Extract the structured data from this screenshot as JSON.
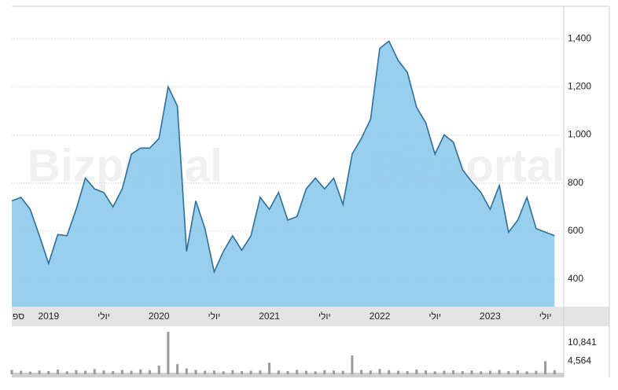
{
  "chart_data": [
    {
      "type": "area",
      "watermark": "Bizportal",
      "color": "#2b6f9c",
      "fill": "#8fc9eb",
      "x": [
        "2018-09",
        "2018-10",
        "2018-11",
        "2018-12",
        "2019-01",
        "2019-02",
        "2019-03",
        "2019-04",
        "2019-05",
        "2019-06",
        "2019-07",
        "2019-08",
        "2019-09",
        "2019-10",
        "2019-11",
        "2019-12",
        "2020-01",
        "2020-02",
        "2020-03",
        "2020-04",
        "2020-05",
        "2020-06",
        "2020-07",
        "2020-08",
        "2020-09",
        "2020-10",
        "2020-11",
        "2020-12",
        "2021-01",
        "2021-02",
        "2021-03",
        "2021-04",
        "2021-05",
        "2021-06",
        "2021-07",
        "2021-08",
        "2021-09",
        "2021-10",
        "2021-11",
        "2021-12",
        "2022-01",
        "2022-02",
        "2022-03",
        "2022-04",
        "2022-05",
        "2022-06",
        "2022-07",
        "2022-08",
        "2022-09",
        "2022-10",
        "2022-11",
        "2022-12",
        "2023-01",
        "2023-02",
        "2023-03",
        "2023-04",
        "2023-05",
        "2023-06",
        "2023-07",
        "2023-08"
      ],
      "values": [
        725,
        740,
        690,
        580,
        465,
        585,
        580,
        690,
        820,
        775,
        760,
        700,
        775,
        920,
        945,
        945,
        985,
        1200,
        1120,
        515,
        725,
        610,
        430,
        515,
        580,
        520,
        580,
        740,
        690,
        760,
        645,
        660,
        775,
        820,
        775,
        820,
        710,
        920,
        985,
        1065,
        1360,
        1390,
        1310,
        1260,
        1115,
        1050,
        920,
        1000,
        970,
        855,
        805,
        760,
        690,
        790,
        595,
        645,
        740,
        610,
        595,
        580
      ],
      "xlim": [
        "2018-09",
        "2023-09"
      ],
      "xticks": [
        {
          "value": "2018-09",
          "label": "ספ"
        },
        {
          "value": "2019-01",
          "label": "2019"
        },
        {
          "value": "2019-07",
          "label": "יולי"
        },
        {
          "value": "2020-01",
          "label": "2020"
        },
        {
          "value": "2020-07",
          "label": "יולי"
        },
        {
          "value": "2021-01",
          "label": "2021"
        },
        {
          "value": "2021-07",
          "label": "יולי"
        },
        {
          "value": "2022-01",
          "label": "2022"
        },
        {
          "value": "2022-07",
          "label": "יולי"
        },
        {
          "value": "2023-01",
          "label": "2023"
        },
        {
          "value": "2023-07",
          "label": "יולי"
        }
      ],
      "ylim": [
        285,
        1535
      ],
      "yticks": [
        400,
        600,
        800,
        {
          "value": 1000,
          "label": "1,000"
        },
        {
          "value": 1200,
          "label": "1,200"
        },
        {
          "value": 1400,
          "label": "1,400"
        }
      ],
      "grid": true
    },
    {
      "type": "bar",
      "color": "#9a9a9a",
      "x": [
        "2018-09",
        "2018-10",
        "2018-11",
        "2018-12",
        "2019-01",
        "2019-02",
        "2019-03",
        "2019-04",
        "2019-05",
        "2019-06",
        "2019-07",
        "2019-08",
        "2019-09",
        "2019-10",
        "2019-11",
        "2019-12",
        "2020-01",
        "2020-02",
        "2020-03",
        "2020-04",
        "2020-05",
        "2020-06",
        "2020-07",
        "2020-08",
        "2020-09",
        "2020-10",
        "2020-11",
        "2020-12",
        "2021-01",
        "2021-02",
        "2021-03",
        "2021-04",
        "2021-05",
        "2021-06",
        "2021-07",
        "2021-08",
        "2021-09",
        "2021-10",
        "2021-11",
        "2021-12",
        "2022-01",
        "2022-02",
        "2022-03",
        "2022-04",
        "2022-05",
        "2022-06",
        "2022-07",
        "2022-08",
        "2022-09",
        "2022-10",
        "2022-11",
        "2022-12",
        "2023-01",
        "2023-02",
        "2023-03",
        "2023-04",
        "2023-05",
        "2023-06",
        "2023-07",
        "2023-08"
      ],
      "values": [
        1500,
        1200,
        900,
        1300,
        1100,
        1600,
        1000,
        1400,
        1200,
        1800,
        1300,
        1100,
        1500,
        1200,
        1700,
        1400,
        3000,
        14650,
        3500,
        2000,
        1500,
        1200,
        1300,
        1000,
        1400,
        1100,
        1200,
        1300,
        4000,
        1300,
        1100,
        1500,
        1200,
        1000,
        1400,
        1300,
        1200,
        6500,
        1500,
        1300,
        1800,
        1400,
        1200,
        1100,
        1600,
        1300,
        1000,
        1200,
        1400,
        1100,
        1300,
        1000,
        1200,
        1500,
        1100,
        1300,
        1000,
        1200,
        4500,
        1400
      ],
      "xlim": [
        "2018-09",
        "2023-09"
      ],
      "ylim": [
        0,
        15750
      ],
      "yticks": [
        {
          "value": 4564,
          "label": "4,564"
        },
        {
          "value": 10841,
          "label": "10,841"
        }
      ]
    }
  ]
}
